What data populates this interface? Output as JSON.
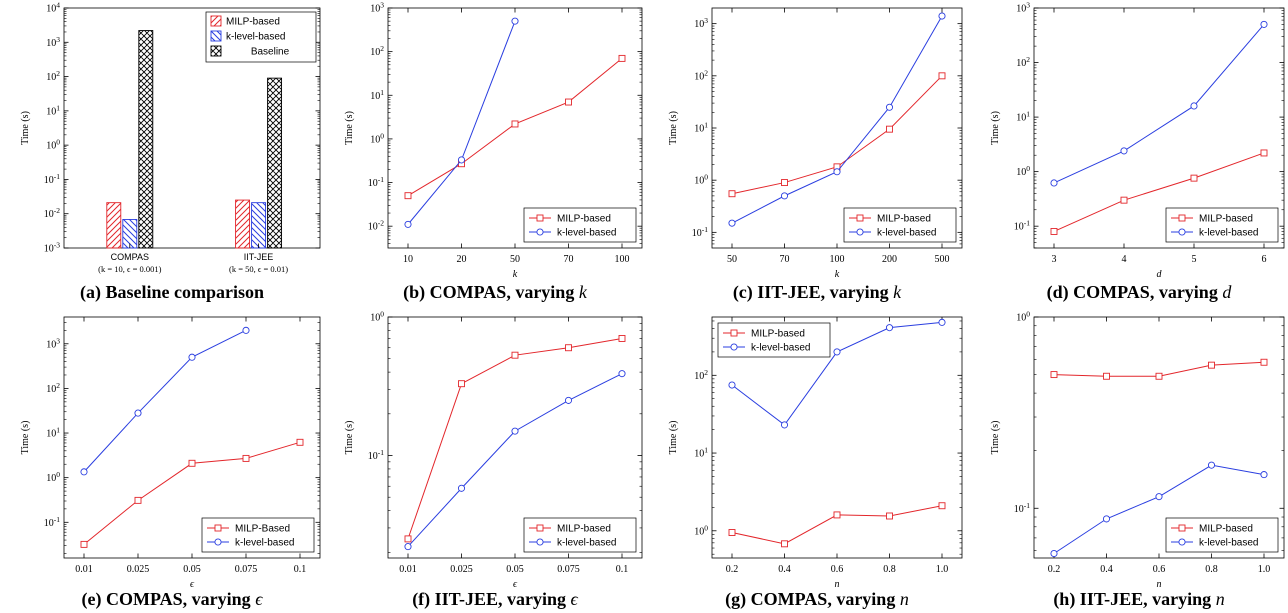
{
  "colors": {
    "milp": "#e3262b",
    "klevel": "#2a3ee0",
    "baseline": "#000000"
  },
  "chart_data": [
    {
      "id": "a",
      "type": "bar",
      "log_y": true,
      "ylim_exp": [
        -3,
        4
      ],
      "ylabel": "Time (s)",
      "caption": "(a) Baseline comparison",
      "categories": [
        "COMPAS",
        "IIT-JEE"
      ],
      "category_subs": [
        "(k = 10, ϵ = 0.001)",
        "(k = 50, ϵ = 0.01)"
      ],
      "series": [
        {
          "name": "MILP-based",
          "key": "milp",
          "values": [
            0.021,
            0.025
          ]
        },
        {
          "name": "k-level-based",
          "key": "klevel",
          "values": [
            0.0068,
            0.021
          ]
        },
        {
          "name": "Baseline",
          "key": "baseline",
          "values": [
            2200,
            90
          ]
        }
      ],
      "legend": "top-right"
    },
    {
      "id": "b",
      "type": "line",
      "log_y": true,
      "ylim_exp": [
        -2.5,
        3
      ],
      "yticks_exp": [
        -2,
        -1,
        0,
        1,
        2,
        3
      ],
      "xcats": [
        "10",
        "20",
        "50",
        "70",
        "100"
      ],
      "xlabel": "k",
      "ylabel": "Time (s)",
      "caption_prefix": "(b) COMPAS, varying ",
      "caption_var": "k",
      "series": [
        {
          "name": "MILP-based",
          "key": "milp",
          "marker": "square",
          "y": [
            0.05,
            0.27,
            2.2,
            7,
            70
          ]
        },
        {
          "name": "k-level-based",
          "key": "klevel",
          "marker": "circle",
          "y": [
            0.011,
            0.33,
            500
          ]
        }
      ],
      "legend": "bottom-right"
    },
    {
      "id": "c",
      "type": "line",
      "log_y": true,
      "ylim_exp": [
        -1.3,
        3.3
      ],
      "yticks_exp": [
        -1,
        0,
        1,
        2,
        3
      ],
      "xcats": [
        "50",
        "70",
        "100",
        "200",
        "500"
      ],
      "xlabel": "k",
      "ylabel": "Time (s)",
      "caption_prefix": "(c) IIT-JEE, varying ",
      "caption_var": "k",
      "series": [
        {
          "name": "MILP-based",
          "key": "milp",
          "marker": "square",
          "y": [
            0.55,
            0.9,
            1.8,
            9.5,
            100
          ]
        },
        {
          "name": "k-level-based",
          "key": "klevel",
          "marker": "circle",
          "y": [
            0.15,
            0.5,
            1.45,
            25,
            1400
          ]
        }
      ],
      "legend": "bottom-right"
    },
    {
      "id": "d",
      "type": "line",
      "log_y": true,
      "ylim_exp": [
        -1.4,
        3
      ],
      "yticks_exp": [
        -1,
        0,
        1,
        2,
        3
      ],
      "xcats": [
        "3",
        "4",
        "5",
        "6"
      ],
      "xlabel": "d",
      "ylabel": "Time (s)",
      "caption_prefix": "(d) COMPAS, varying ",
      "caption_var": "d",
      "series": [
        {
          "name": "MILP-based",
          "key": "milp",
          "marker": "square",
          "y": [
            0.08,
            0.3,
            0.76,
            2.2
          ]
        },
        {
          "name": "k-level-based",
          "key": "klevel",
          "marker": "circle",
          "y": [
            0.62,
            2.4,
            16,
            500
          ]
        }
      ],
      "legend": "bottom-right"
    },
    {
      "id": "e",
      "type": "line",
      "log_y": true,
      "ylim_exp": [
        -1.8,
        3.6
      ],
      "yticks_exp": [
        -1,
        0,
        1,
        2,
        3
      ],
      "xcats": [
        "0.01",
        "0.025",
        "0.05",
        "0.075",
        "0.1"
      ],
      "xlabel": "ϵ",
      "ylabel": "Time (s)",
      "caption_prefix": "(e) COMPAS, varying ",
      "caption_var": "ϵ",
      "series": [
        {
          "name": "MILP-Based",
          "key": "milp",
          "marker": "square",
          "y": [
            0.032,
            0.31,
            2.1,
            2.7,
            6.2
          ]
        },
        {
          "name": "k-level-based",
          "key": "klevel",
          "marker": "circle",
          "y": [
            1.35,
            28,
            500,
            2000
          ]
        }
      ],
      "legend": "bottom-right"
    },
    {
      "id": "f",
      "type": "line",
      "log_y": true,
      "ylim_exp": [
        -1.74,
        0
      ],
      "yticks_exp": [
        -1,
        0
      ],
      "xcats": [
        "0.01",
        "0.025",
        "0.05",
        "0.075",
        "0.1"
      ],
      "xlabel": "ϵ",
      "ylabel": "Time (s)",
      "caption_prefix": "(f) IIT-JEE, varying ",
      "caption_var": "ϵ",
      "series": [
        {
          "name": "MILP-based",
          "key": "milp",
          "marker": "square",
          "y": [
            0.025,
            0.33,
            0.53,
            0.6,
            0.7
          ]
        },
        {
          "name": "k-level-based",
          "key": "klevel",
          "marker": "circle",
          "y": [
            0.022,
            0.058,
            0.15,
            0.25,
            0.39
          ]
        }
      ],
      "legend": "bottom-right"
    },
    {
      "id": "g",
      "type": "line",
      "log_y": true,
      "ylim_exp": [
        -0.35,
        2.75
      ],
      "yticks_exp": [
        0,
        1,
        2
      ],
      "xcats": [
        "0.2",
        "0.4",
        "0.6",
        "0.8",
        "1.0"
      ],
      "xlabel": "n",
      "ylabel": "Time (s)",
      "caption_prefix": "(g) COMPAS, varying ",
      "caption_var": "n",
      "series": [
        {
          "name": "MILP-based",
          "key": "milp",
          "marker": "square",
          "y": [
            0.95,
            0.68,
            1.6,
            1.55,
            2.1
          ]
        },
        {
          "name": "k-level-based",
          "key": "klevel",
          "marker": "circle",
          "y": [
            75,
            23,
            200,
            410,
            480
          ]
        }
      ],
      "legend": "top-left"
    },
    {
      "id": "h",
      "type": "line",
      "log_y": true,
      "ylim_exp": [
        -1.26,
        0
      ],
      "yticks_exp": [
        -1,
        0
      ],
      "xcats": [
        "0.2",
        "0.4",
        "0.6",
        "0.8",
        "1.0"
      ],
      "xlabel": "n",
      "ylabel": "Time (s)",
      "caption_prefix": "(h) IIT-JEE, varying ",
      "caption_var": "n",
      "series": [
        {
          "name": "MILP-based",
          "key": "milp",
          "marker": "square",
          "y": [
            0.5,
            0.49,
            0.49,
            0.56,
            0.58
          ]
        },
        {
          "name": "k-level-based",
          "key": "klevel",
          "marker": "circle",
          "y": [
            0.058,
            0.088,
            0.115,
            0.168,
            0.15
          ]
        }
      ],
      "legend": "bottom-right"
    }
  ]
}
